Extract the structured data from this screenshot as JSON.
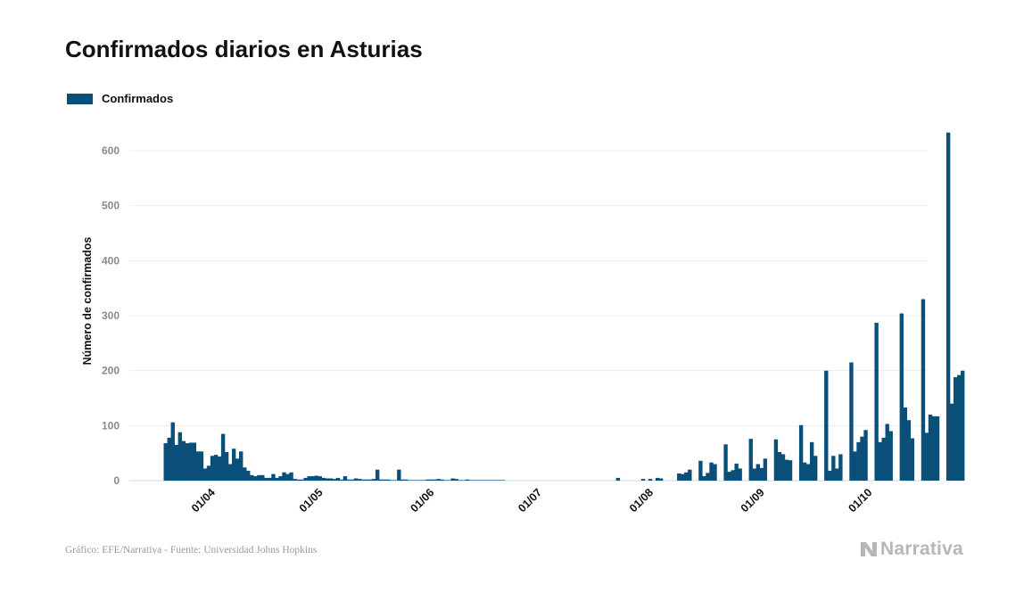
{
  "chart_data": {
    "type": "bar",
    "title": "Confirmados diarios en Asturias",
    "ylabel": "Número de confirmados",
    "xlabel": "",
    "ylim": [
      0,
      660
    ],
    "yticks": [
      0,
      100,
      200,
      300,
      400,
      500,
      600
    ],
    "grid": true,
    "legend_position": "top-left",
    "x_tick_labels": [
      "01/04",
      "01/05",
      "01/06",
      "01/07",
      "01/08",
      "01/09",
      "01/10"
    ],
    "series": [
      {
        "name": "Confirmados",
        "color": "#0a4f79",
        "values": [
          68,
          78,
          106,
          65,
          88,
          72,
          68,
          69,
          69,
          53,
          53,
          22,
          27,
          45,
          47,
          44,
          85,
          52,
          30,
          58,
          40,
          53,
          24,
          18,
          10,
          8,
          10,
          10,
          5,
          5,
          12,
          5,
          8,
          15,
          12,
          15,
          3,
          2,
          2,
          5,
          8,
          8,
          9,
          8,
          5,
          4,
          4,
          3,
          5,
          2,
          8,
          2,
          2,
          4,
          3,
          2,
          2,
          2,
          3,
          20,
          2,
          2,
          2,
          1,
          1,
          20,
          2,
          2,
          1,
          1,
          1,
          1,
          1,
          2,
          2,
          2,
          3,
          2,
          1,
          1,
          4,
          3,
          1,
          1,
          2,
          1,
          1,
          1,
          1,
          1,
          1,
          1,
          1,
          1,
          1,
          0,
          0,
          0,
          0,
          0,
          0,
          0,
          0,
          0,
          0,
          0,
          0,
          0,
          0,
          0,
          0,
          0,
          0,
          0,
          0,
          0,
          0,
          0,
          0,
          0,
          0,
          0,
          0,
          0,
          0,
          0,
          5,
          0,
          0,
          0,
          0,
          0,
          0,
          3,
          0,
          3,
          0,
          5,
          4,
          0,
          0,
          0,
          0,
          13,
          12,
          15,
          20,
          0,
          0,
          36,
          8,
          14,
          33,
          30,
          0,
          0,
          66,
          16,
          19,
          31,
          22,
          0,
          0,
          76,
          22,
          30,
          23,
          40,
          0,
          0,
          75,
          52,
          48,
          38,
          37,
          0,
          0,
          101,
          33,
          30,
          70,
          45,
          0,
          0,
          200,
          18,
          45,
          22,
          48,
          0,
          0,
          215,
          53,
          70,
          80,
          92,
          0,
          0,
          287,
          70,
          78,
          103,
          90,
          0,
          0,
          304,
          133,
          110,
          77,
          0,
          0,
          330,
          87,
          120,
          117,
          117,
          0,
          0,
          633,
          140,
          188,
          192,
          200
        ]
      }
    ]
  },
  "footer": {
    "source": "Gráfico: EFE/Narrativa - Fuente: Universidad Johns Hopkins",
    "brand": "Narrativa"
  }
}
